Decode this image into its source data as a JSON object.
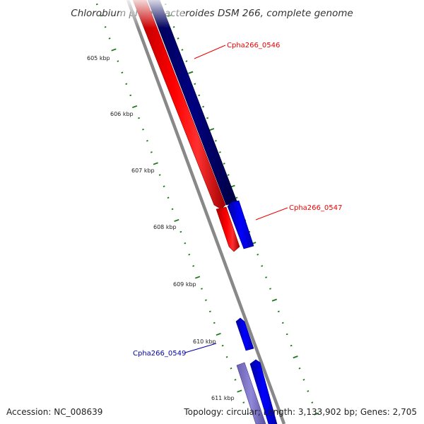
{
  "title": "Chlorobium phaeobacteroides DSM 266, complete genome",
  "footer": {
    "accession": "Accession: NC_008639",
    "summary": "Topology: circular; Length: 3,133,902 bp; Genes: 2,705"
  },
  "ticks": [
    "605 kbp",
    "606 kbp",
    "607 kbp",
    "608 kbp",
    "609 kbp",
    "610 kbp",
    "611 kbp"
  ],
  "genes": [
    {
      "id": "Cpha266_0546",
      "strand": "forward",
      "color": "#ee0000"
    },
    {
      "id": "Cpha266_0547",
      "strand": "reverse",
      "color": "#ee0000"
    },
    {
      "id": "Cpha266_0549",
      "strand": "forward",
      "color": "#0000aa"
    }
  ],
  "colors": {
    "backbone": "#808080",
    "tick": "#1a7a1a",
    "forward_feature": "#ff0000",
    "reverse_feature": "#0000ff",
    "reverse_dark": "#000080",
    "pale_feature": "#8a7fd0"
  }
}
